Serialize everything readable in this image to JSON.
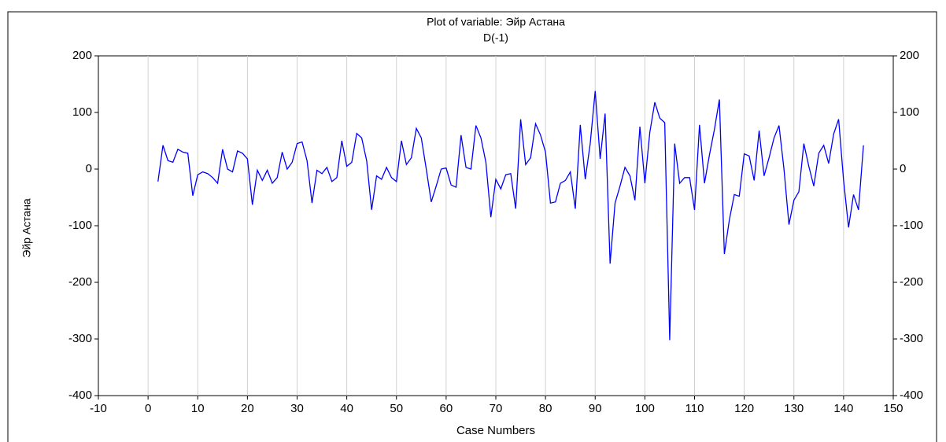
{
  "chart_data": {
    "type": "line",
    "title": "Plot of variable: Эйр Астана",
    "subtitle": "D(-1)",
    "xlabel": "Case Numbers",
    "ylabel": "Эйр Астана",
    "x": [
      2,
      3,
      4,
      5,
      6,
      7,
      8,
      9,
      10,
      11,
      12,
      13,
      14,
      15,
      16,
      17,
      18,
      19,
      20,
      21,
      22,
      23,
      24,
      25,
      26,
      27,
      28,
      29,
      30,
      31,
      32,
      33,
      34,
      35,
      36,
      37,
      38,
      39,
      40,
      41,
      42,
      43,
      44,
      45,
      46,
      47,
      48,
      49,
      50,
      51,
      52,
      53,
      54,
      55,
      56,
      57,
      58,
      59,
      60,
      61,
      62,
      63,
      64,
      65,
      66,
      67,
      68,
      69,
      70,
      71,
      72,
      73,
      74,
      75,
      76,
      77,
      78,
      79,
      80,
      81,
      82,
      83,
      84,
      85,
      86,
      87,
      88,
      89,
      90,
      91,
      92,
      93,
      94,
      95,
      96,
      97,
      98,
      99,
      100,
      101,
      102,
      103,
      104,
      105,
      106,
      107,
      108,
      109,
      110,
      111,
      112,
      113,
      114,
      115,
      116,
      117,
      118,
      119,
      120,
      121,
      122,
      123,
      124,
      125,
      126,
      127,
      128,
      129,
      130,
      131,
      132,
      133,
      134,
      135,
      136,
      137,
      138,
      139,
      140,
      141,
      142,
      143,
      144
    ],
    "series": [
      {
        "name": "Эйр Астана",
        "color": "#0000ff",
        "values": [
          -22,
          42,
          15,
          12,
          35,
          30,
          28,
          -47,
          -10,
          -5,
          -8,
          -15,
          -25,
          35,
          0,
          -5,
          32,
          28,
          18,
          -63,
          -2,
          -20,
          -2,
          -25,
          -15,
          30,
          0,
          12,
          45,
          48,
          15,
          -60,
          -2,
          -8,
          3,
          -22,
          -15,
          50,
          5,
          12,
          63,
          55,
          15,
          -72,
          -12,
          -18,
          3,
          -15,
          -22,
          50,
          8,
          20,
          72,
          55,
          0,
          -58,
          -30,
          0,
          2,
          -28,
          -32,
          60,
          3,
          0,
          77,
          55,
          12,
          -85,
          -18,
          -35,
          -10,
          -8,
          -70,
          88,
          8,
          20,
          80,
          60,
          30,
          -60,
          -58,
          -25,
          -20,
          -5,
          -70,
          78,
          -18,
          45,
          138,
          18,
          98,
          -167,
          -60,
          -30,
          3,
          -12,
          -55,
          75,
          -25,
          65,
          118,
          90,
          82,
          -302,
          45,
          -25,
          -15,
          -15,
          -72,
          78,
          -25,
          25,
          70,
          123,
          -150,
          -90,
          -45,
          -48,
          27,
          23,
          -20,
          68,
          -12,
          20,
          55,
          77,
          0,
          -98,
          -55,
          -40,
          45,
          5,
          -30,
          28,
          42,
          10,
          62,
          88,
          -20,
          -103,
          -45,
          -72,
          42
        ]
      }
    ],
    "xlim": [
      -10,
      150
    ],
    "xticks": [
      -10,
      0,
      10,
      20,
      30,
      40,
      50,
      60,
      70,
      80,
      90,
      100,
      110,
      120,
      130,
      140,
      150
    ],
    "ylim": [
      -400,
      200
    ],
    "yticks": [
      -400,
      -300,
      -200,
      -100,
      0,
      100,
      200
    ],
    "grid": "x"
  }
}
